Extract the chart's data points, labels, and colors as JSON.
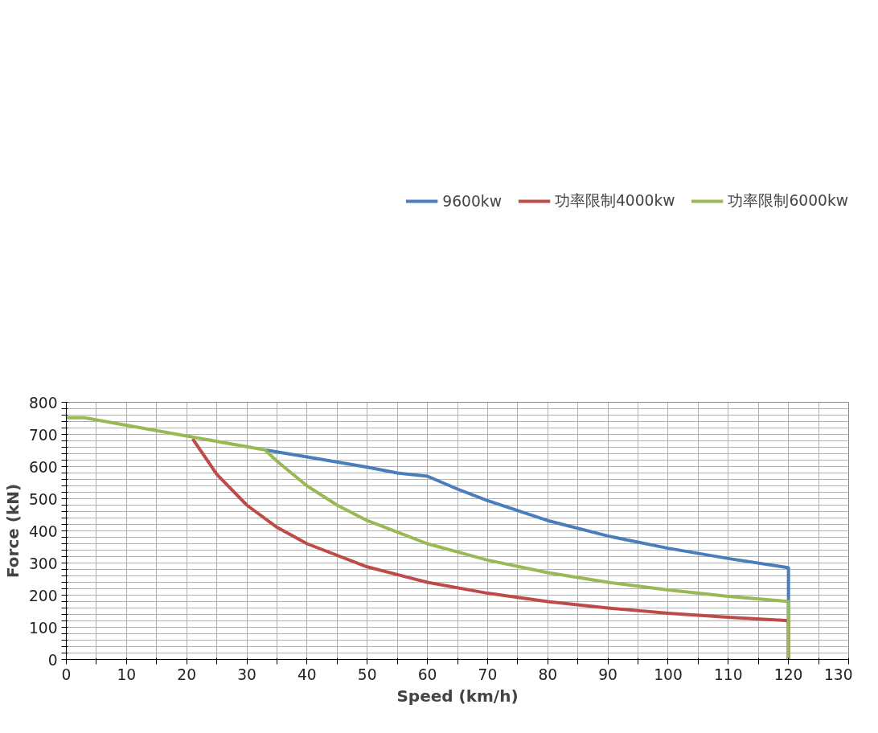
{
  "chart_data": {
    "type": "line",
    "xlabel": "Speed (km/h)",
    "ylabel": "Force (kN)",
    "xlim": [
      0,
      130
    ],
    "ylim": [
      0,
      800
    ],
    "xticks": [
      0,
      {
        "value": 5,
        "label": null
      },
      10,
      {
        "value": 15,
        "label": null
      },
      20,
      {
        "value": 25,
        "label": null
      },
      30,
      {
        "value": 35,
        "label": null
      },
      40,
      {
        "value": 45,
        "label": null
      },
      50,
      {
        "value": 55,
        "label": null
      },
      60,
      {
        "value": 65,
        "label": null
      },
      70,
      {
        "value": 75,
        "label": null
      },
      80,
      {
        "value": 85,
        "label": null
      },
      90,
      {
        "value": 95,
        "label": null
      },
      100,
      {
        "value": 105,
        "label": null
      },
      110,
      {
        "value": 115,
        "label": null
      },
      120,
      {
        "value": 125,
        "label": null
      },
      130
    ],
    "yticks": [
      0,
      {
        "value": 20,
        "label": null
      },
      {
        "value": 40,
        "label": null
      },
      {
        "value": 60,
        "label": null
      },
      {
        "value": 80,
        "label": null
      },
      100,
      {
        "value": 120,
        "label": null
      },
      {
        "value": 140,
        "label": null
      },
      {
        "value": 160,
        "label": null
      },
      {
        "value": 180,
        "label": null
      },
      200,
      {
        "value": 220,
        "label": null
      },
      {
        "value": 240,
        "label": null
      },
      {
        "value": 260,
        "label": null
      },
      {
        "value": 280,
        "label": null
      },
      300,
      {
        "value": 320,
        "label": null
      },
      {
        "value": 340,
        "label": null
      },
      {
        "value": 360,
        "label": null
      },
      {
        "value": 380,
        "label": null
      },
      400,
      {
        "value": 420,
        "label": null
      },
      {
        "value": 440,
        "label": null
      },
      {
        "value": 460,
        "label": null
      },
      {
        "value": 480,
        "label": null
      },
      500,
      {
        "value": 520,
        "label": null
      },
      {
        "value": 540,
        "label": null
      },
      {
        "value": 560,
        "label": null
      },
      {
        "value": 580,
        "label": null
      },
      600,
      {
        "value": 620,
        "label": null
      },
      {
        "value": 640,
        "label": null
      },
      {
        "value": 660,
        "label": null
      },
      {
        "value": 680,
        "label": null
      },
      700,
      {
        "value": 720,
        "label": null
      },
      {
        "value": 740,
        "label": null
      },
      {
        "value": 760,
        "label": null
      },
      {
        "value": 780,
        "label": null
      },
      800
    ],
    "grid": true,
    "legend": "top",
    "marker": "none",
    "line_style": "solid",
    "series": [
      {
        "name": "9600kw",
        "color": "#4a7ebb",
        "x": [
          33,
          40,
          50,
          55,
          60,
          65,
          70,
          80,
          90,
          100,
          110,
          119.5,
          120,
          120
        ],
        "values": [
          652,
          630,
          598,
          580,
          570,
          530,
          494,
          432,
          384,
          346,
          314,
          287,
          285,
          0
        ]
      },
      {
        "name": "功率限制4000kw",
        "color": "#be4b48",
        "x": [
          21,
          25,
          30,
          35,
          40,
          50,
          60,
          70,
          80,
          90,
          100,
          110,
          119.5,
          120,
          120
        ],
        "values": [
          686,
          576,
          480,
          411,
          360,
          288,
          240,
          206,
          180,
          160,
          144,
          131,
          121,
          120,
          0
        ]
      },
      {
        "name": "功率限制6000kw",
        "color": "#98b954",
        "x": [
          0,
          3,
          20,
          33,
          35,
          40,
          45,
          50,
          60,
          70,
          80,
          90,
          100,
          110,
          119.5,
          120,
          120
        ],
        "values": [
          752,
          752,
          695,
          652,
          617,
          540,
          480,
          432,
          360,
          309,
          270,
          240,
          216,
          196,
          181,
          180,
          0
        ]
      }
    ]
  }
}
